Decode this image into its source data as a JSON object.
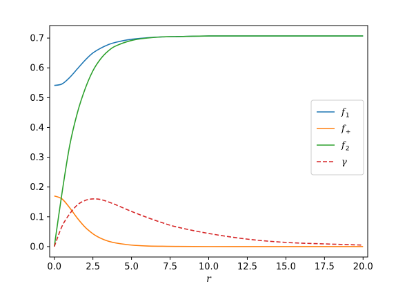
{
  "chart_data": {
    "type": "line",
    "title": "",
    "xlabel": "r",
    "ylabel": "",
    "xlim": [
      -0.3,
      20.3
    ],
    "ylim": [
      -0.035,
      0.742
    ],
    "xticks": [
      0.0,
      2.5,
      5.0,
      7.5,
      10.0,
      12.5,
      15.0,
      17.5,
      20.0
    ],
    "xtick_labels": [
      "0.0",
      "2.5",
      "5.0",
      "7.5",
      "10.0",
      "12.5",
      "15.0",
      "17.5",
      "20.0"
    ],
    "yticks": [
      0.0,
      0.1,
      0.2,
      0.3,
      0.4,
      0.5,
      0.6,
      0.7
    ],
    "ytick_labels": [
      "0.0",
      "0.1",
      "0.2",
      "0.3",
      "0.4",
      "0.5",
      "0.6",
      "0.7"
    ],
    "grid": false,
    "legend_position": "center-right",
    "x": [
      0,
      0.5,
      1,
      1.5,
      2,
      2.5,
      3,
      3.5,
      4,
      5,
      6,
      7,
      8,
      10,
      12.5,
      15,
      17.5,
      20
    ],
    "series": [
      {
        "name": "f",
        "subscript": "1",
        "color": "#1f77b4",
        "dash": "solid",
        "values": [
          0.541,
          0.546,
          0.568,
          0.597,
          0.626,
          0.65,
          0.666,
          0.678,
          0.686,
          0.696,
          0.701,
          0.704,
          0.705,
          0.707,
          0.707,
          0.707,
          0.707,
          0.707
        ]
      },
      {
        "name": "f",
        "subscript": "+",
        "color": "#ff7f0e",
        "dash": "solid",
        "values": [
          0.17,
          0.16,
          0.13,
          0.095,
          0.065,
          0.043,
          0.028,
          0.018,
          0.012,
          0.005,
          0.002,
          0.001,
          0.0005,
          0.0001,
          0.0,
          0.0,
          0.0,
          0.0
        ]
      },
      {
        "name": "f",
        "subscript": "2",
        "color": "#2ca02c",
        "dash": "solid",
        "values": [
          0.0,
          0.18,
          0.34,
          0.45,
          0.53,
          0.59,
          0.63,
          0.657,
          0.674,
          0.692,
          0.7,
          0.704,
          0.705,
          0.707,
          0.707,
          0.707,
          0.707,
          0.707
        ]
      },
      {
        "name": "γ",
        "subscript": "",
        "color": "#d62728",
        "dash": "dashed",
        "values": [
          0.0,
          0.068,
          0.11,
          0.14,
          0.155,
          0.16,
          0.158,
          0.15,
          0.14,
          0.118,
          0.098,
          0.08,
          0.065,
          0.044,
          0.025,
          0.014,
          0.009,
          0.005
        ]
      }
    ]
  }
}
